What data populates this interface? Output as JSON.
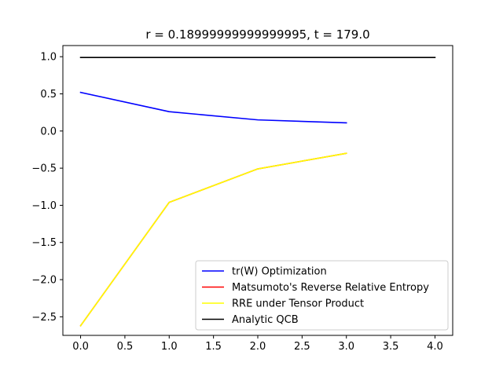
{
  "chart_data": {
    "type": "line",
    "title": "r = 0.18999999999999995, t = 179.0",
    "xlabel": "",
    "ylabel": "",
    "xlim": [
      -0.2,
      4.2
    ],
    "ylim": [
      -2.75,
      1.15
    ],
    "xticks": [
      0.0,
      0.5,
      1.0,
      1.5,
      2.0,
      2.5,
      3.0,
      3.5,
      4.0
    ],
    "xtick_labels": [
      "0.0",
      "0.5",
      "1.0",
      "1.5",
      "2.0",
      "2.5",
      "3.0",
      "3.5",
      "4.0"
    ],
    "yticks": [
      1.0,
      0.5,
      0.0,
      -0.5,
      -1.0,
      -1.5,
      -2.0,
      -2.5
    ],
    "ytick_labels": [
      "1.0",
      "0.5",
      "0.0",
      "−0.5",
      "−1.0",
      "−1.5",
      "−2.0",
      "−2.5"
    ],
    "grid": false,
    "legend_position": "bottom-right",
    "series": [
      {
        "name": "tr(W) Optimization",
        "color": "#0000ff",
        "x": [
          0,
          1,
          2,
          3
        ],
        "values": [
          0.52,
          0.26,
          0.15,
          0.11
        ]
      },
      {
        "name": "Matsumoto's Reverse Relative Entropy",
        "color": "#ff0000",
        "x": [
          0,
          1,
          2,
          3
        ],
        "values": [
          -2.62,
          -0.96,
          -0.51,
          -0.3
        ]
      },
      {
        "name": "RRE under Tensor Product",
        "color": "#ffff00",
        "x": [
          0,
          1,
          2,
          3
        ],
        "values": [
          -2.62,
          -0.96,
          -0.51,
          -0.3
        ]
      },
      {
        "name": "Analytic QCB",
        "color": "#000000",
        "x": [
          0,
          4
        ],
        "values": [
          0.99,
          0.99
        ]
      }
    ]
  }
}
